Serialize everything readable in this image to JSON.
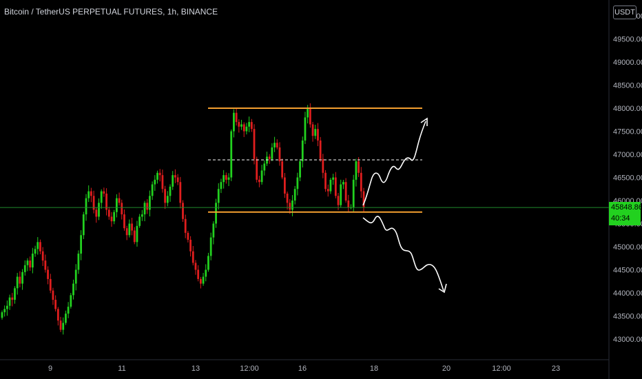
{
  "header": {
    "title": "Bitcoin / TetherUS PERPETUAL FUTURES, 1h, BINANCE",
    "currency": "USDT"
  },
  "price_badge": {
    "price": "45848.86",
    "countdown": "40:34"
  },
  "colors": {
    "background": "#000000",
    "up": "#22d11f",
    "down": "#e01e1e",
    "level_lines": "#f5a030",
    "midline": "#ffffff",
    "arrows": "#ffffff",
    "price_line": "#1f8a2e"
  },
  "chart_data": {
    "type": "candlestick",
    "title": "Bitcoin / TetherUS PERPETUAL FUTURES, 1h, BINANCE",
    "y_axis": {
      "side": "right",
      "ticks": [
        "43000.00",
        "43500.00",
        "44000.00",
        "44500.00",
        "45000.00",
        "45500.00",
        "46000.00",
        "46500.00",
        "47000.00",
        "47500.00",
        "48000.00",
        "48500.00",
        "49000.00",
        "49500.00",
        "50000.00"
      ],
      "ylim": [
        42600,
        50200
      ]
    },
    "x_axis": {
      "ticks": [
        "9",
        "11",
        "13",
        "12:00",
        "16",
        "18",
        "20",
        "12:00",
        "23"
      ]
    },
    "current_price": 45848.86,
    "countdown": "40:34",
    "annotations": {
      "range_top": 48000,
      "range_bottom": 45750,
      "midline": 46880,
      "projections": [
        "up",
        "down"
      ]
    },
    "series_close": [
      43580,
      43650,
      43720,
      43900,
      43850,
      44100,
      44350,
      44200,
      44450,
      44600,
      44700,
      44550,
      44850,
      44950,
      45100,
      44900,
      44700,
      44500,
      44300,
      44050,
      43850,
      43650,
      43400,
      43200,
      43350,
      43550,
      43700,
      43950,
      44200,
      44500,
      44850,
      45250,
      45700,
      46050,
      46200,
      46100,
      45800,
      45650,
      45950,
      46200,
      46150,
      45800,
      45650,
      45550,
      45750,
      46050,
      45950,
      45700,
      45400,
      45250,
      45500,
      45350,
      45100,
      45450,
      45650,
      45700,
      45950,
      45800,
      46100,
      46350,
      46450,
      46600,
      46550,
      46250,
      45950,
      46100,
      46300,
      46550,
      46500,
      46400,
      45950,
      45600,
      45300,
      45150,
      44900,
      44650,
      44500,
      44300,
      44200,
      44350,
      44500,
      44800,
      45200,
      45500,
      45950,
      46250,
      46400,
      46550,
      46450,
      46500,
      47500,
      47900,
      47700,
      47600,
      47650,
      47500,
      47600,
      47700,
      47550,
      46900,
      46450,
      46400,
      46650,
      46800,
      46950,
      46900,
      47150,
      47250,
      47150,
      46850,
      46500,
      46150,
      45950,
      45800,
      46000,
      46250,
      46500,
      46850,
      47300,
      47800,
      48000,
      47650,
      47400,
      47550,
      47300,
      46900,
      46600,
      46250,
      46200,
      46450,
      46500,
      46100,
      45900,
      46350,
      46400,
      46000,
      45850,
      45850,
      46450,
      46850,
      46600,
      46200,
      45848
    ]
  }
}
